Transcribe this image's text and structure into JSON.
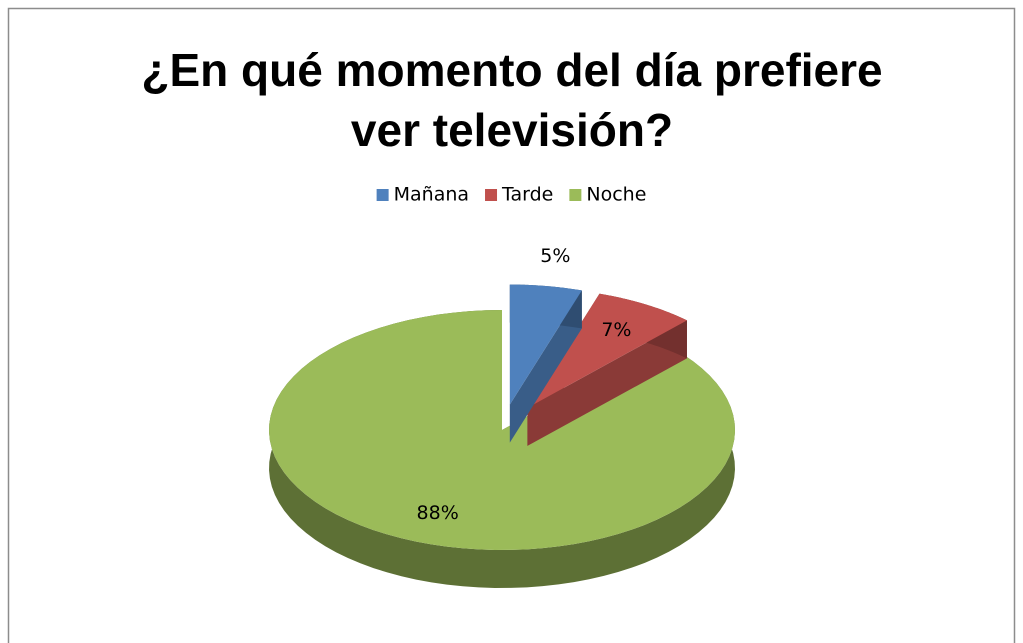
{
  "chart_data": {
    "type": "pie3d",
    "title": "¿En qué momento del día prefiere ver televisión?",
    "categories": [
      "Mañana",
      "Tarde",
      "Noche"
    ],
    "values": [
      5,
      7,
      88
    ],
    "value_labels": [
      "5%",
      "7%",
      "88%"
    ],
    "colors": [
      "#4f81bd",
      "#c0504d",
      "#9bbb59"
    ],
    "legend": "top"
  }
}
